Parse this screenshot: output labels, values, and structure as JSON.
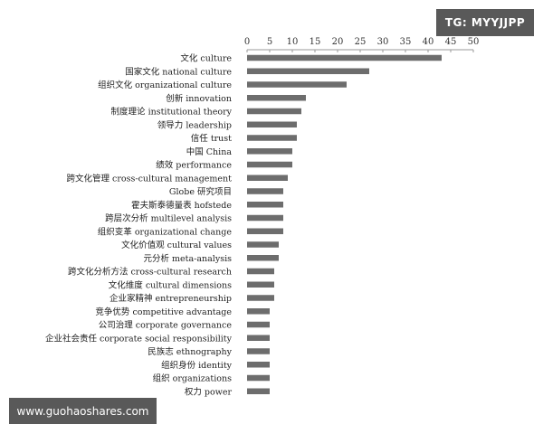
{
  "watermarks": {
    "top_right": "TG: MYYJJPP",
    "bottom_left": "www.guohaoshares.com"
  },
  "colors": {
    "bar": "#6d6d6d",
    "axis": "#999999",
    "watermark_bg": "#595959",
    "watermark_text": "#ffffff"
  },
  "chart_data": {
    "type": "bar",
    "orientation": "horizontal",
    "axis_position": "top",
    "xlim": [
      0,
      50
    ],
    "ticks": [
      0,
      5,
      10,
      15,
      20,
      25,
      30,
      35,
      40,
      45,
      50
    ],
    "grid": false,
    "categories": [
      "文化 culture",
      "国家文化 national culture",
      "组织文化 organizational culture",
      "创新 innovation",
      "制度理论 institutional theory",
      "领导力 leadership",
      "信任 trust",
      "中国 China",
      "绩效 performance",
      "跨文化管理 cross-cultural management",
      "Globe 研究项目",
      "霍夫斯泰德量表 hofstede",
      "跨层次分析 multilevel analysis",
      "组织变革 organizational change",
      "文化价值观 cultural values",
      "元分析 meta-analysis",
      "跨文化分析方法 cross-cultural research",
      "文化维度 cultural dimensions",
      "企业家精神 entrepreneurship",
      "竞争优势 competitive advantage",
      "公司治理 corporate governance",
      "企业社会责任 corporate social responsibility",
      "民族志 ethnography",
      "组织身份 identity",
      "组织 organizations",
      "权力 power"
    ],
    "values": [
      43,
      27,
      22,
      13,
      12,
      11,
      11,
      10,
      10,
      9,
      8,
      8,
      8,
      8,
      7,
      7,
      6,
      6,
      6,
      5,
      5,
      5,
      5,
      5,
      5,
      5
    ]
  }
}
